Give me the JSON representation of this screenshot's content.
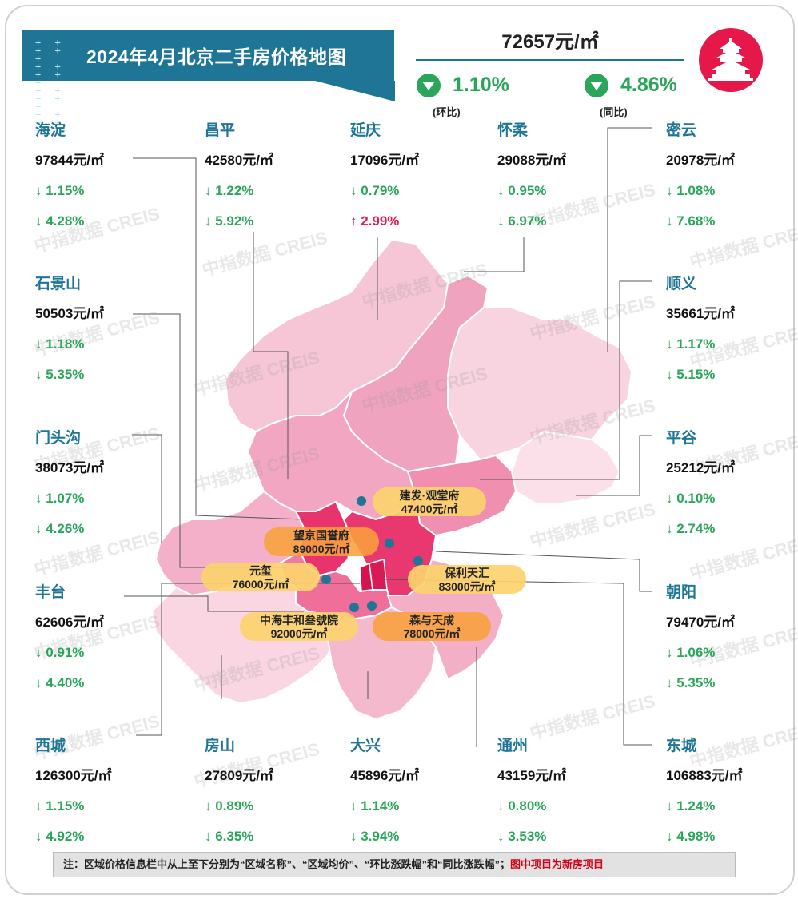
{
  "title": "2024年4月北京二手房价格地图",
  "summary": {
    "avg_price": "72657元/㎡",
    "mom": {
      "value": "1.10%",
      "label": "(环比)",
      "direction": "down"
    },
    "yoy": {
      "value": "4.86%",
      "label": "(同比)",
      "direction": "down"
    }
  },
  "logo_icon": "temple-of-heaven-icon",
  "watermark": "中指数据 CREIS",
  "colors": {
    "title_bg": "#1e7596",
    "down": "#2aa55a",
    "up": "#e6184a",
    "district_name": "#1e7596"
  },
  "districts": [
    {
      "name": "海淀",
      "price": "97844元/㎡",
      "mom": "↓ 1.15%",
      "yoy": "↓ 4.28%"
    },
    {
      "name": "昌平",
      "price": "42580元/㎡",
      "mom": "↓ 1.22%",
      "yoy": "↓ 5.92%"
    },
    {
      "name": "延庆",
      "price": "17096元/㎡",
      "mom": "↓ 0.79%",
      "yoy": "↑ 2.99%"
    },
    {
      "name": "怀柔",
      "price": "29088元/㎡",
      "mom": "↓ 0.95%",
      "yoy": "↓ 6.97%"
    },
    {
      "name": "密云",
      "price": "20978元/㎡",
      "mom": "↓ 1.08%",
      "yoy": "↓ 7.68%"
    },
    {
      "name": "石景山",
      "price": "50503元/㎡",
      "mom": "↓ 1.18%",
      "yoy": "↓ 5.35%"
    },
    {
      "name": "顺义",
      "price": "35661元/㎡",
      "mom": "↓ 1.17%",
      "yoy": "↓ 5.15%"
    },
    {
      "name": "门头沟",
      "price": "38073元/㎡",
      "mom": "↓ 1.07%",
      "yoy": "↓ 4.26%"
    },
    {
      "name": "平谷",
      "price": "25212元/㎡",
      "mom": "↓ 0.10%",
      "yoy": "↓ 2.74%"
    },
    {
      "name": "丰台",
      "price": "62606元/㎡",
      "mom": "↓ 0.91%",
      "yoy": "↓ 4.40%"
    },
    {
      "name": "朝阳",
      "price": "79470元/㎡",
      "mom": "↓ 1.06%",
      "yoy": "↓ 5.35%"
    },
    {
      "name": "西城",
      "price": "126300元/㎡",
      "mom": "↓ 1.15%",
      "yoy": "↓ 4.92%"
    },
    {
      "name": "房山",
      "price": "27809元/㎡",
      "mom": "↓ 0.89%",
      "yoy": "↓ 6.35%"
    },
    {
      "name": "大兴",
      "price": "45896元/㎡",
      "mom": "↓ 1.14%",
      "yoy": "↓ 3.94%"
    },
    {
      "name": "通州",
      "price": "43159元/㎡",
      "mom": "↓ 0.80%",
      "yoy": "↓ 3.53%"
    },
    {
      "name": "东城",
      "price": "106883元/㎡",
      "mom": "↓ 1.24%",
      "yoy": "↓ 4.98%"
    }
  ],
  "projects": [
    {
      "name": "建发·观堂府",
      "price": "47400元/㎡"
    },
    {
      "name": "望京国誉府",
      "price": "89000元/㎡"
    },
    {
      "name": "元玺",
      "price": "76000元/㎡"
    },
    {
      "name": "保利天汇",
      "price": "83000元/㎡"
    },
    {
      "name": "中海丰和叁號院",
      "price": "92000元/㎡"
    },
    {
      "name": "森与天成",
      "price": "78000元/㎡"
    }
  ],
  "note": {
    "prefix": "注：区域价格信息栏中从上至下分别为“区域名称”、“区域均价”、“环比涨跌幅”和“同比涨跌幅”；",
    "highlight": "图中项目为新房项目"
  }
}
